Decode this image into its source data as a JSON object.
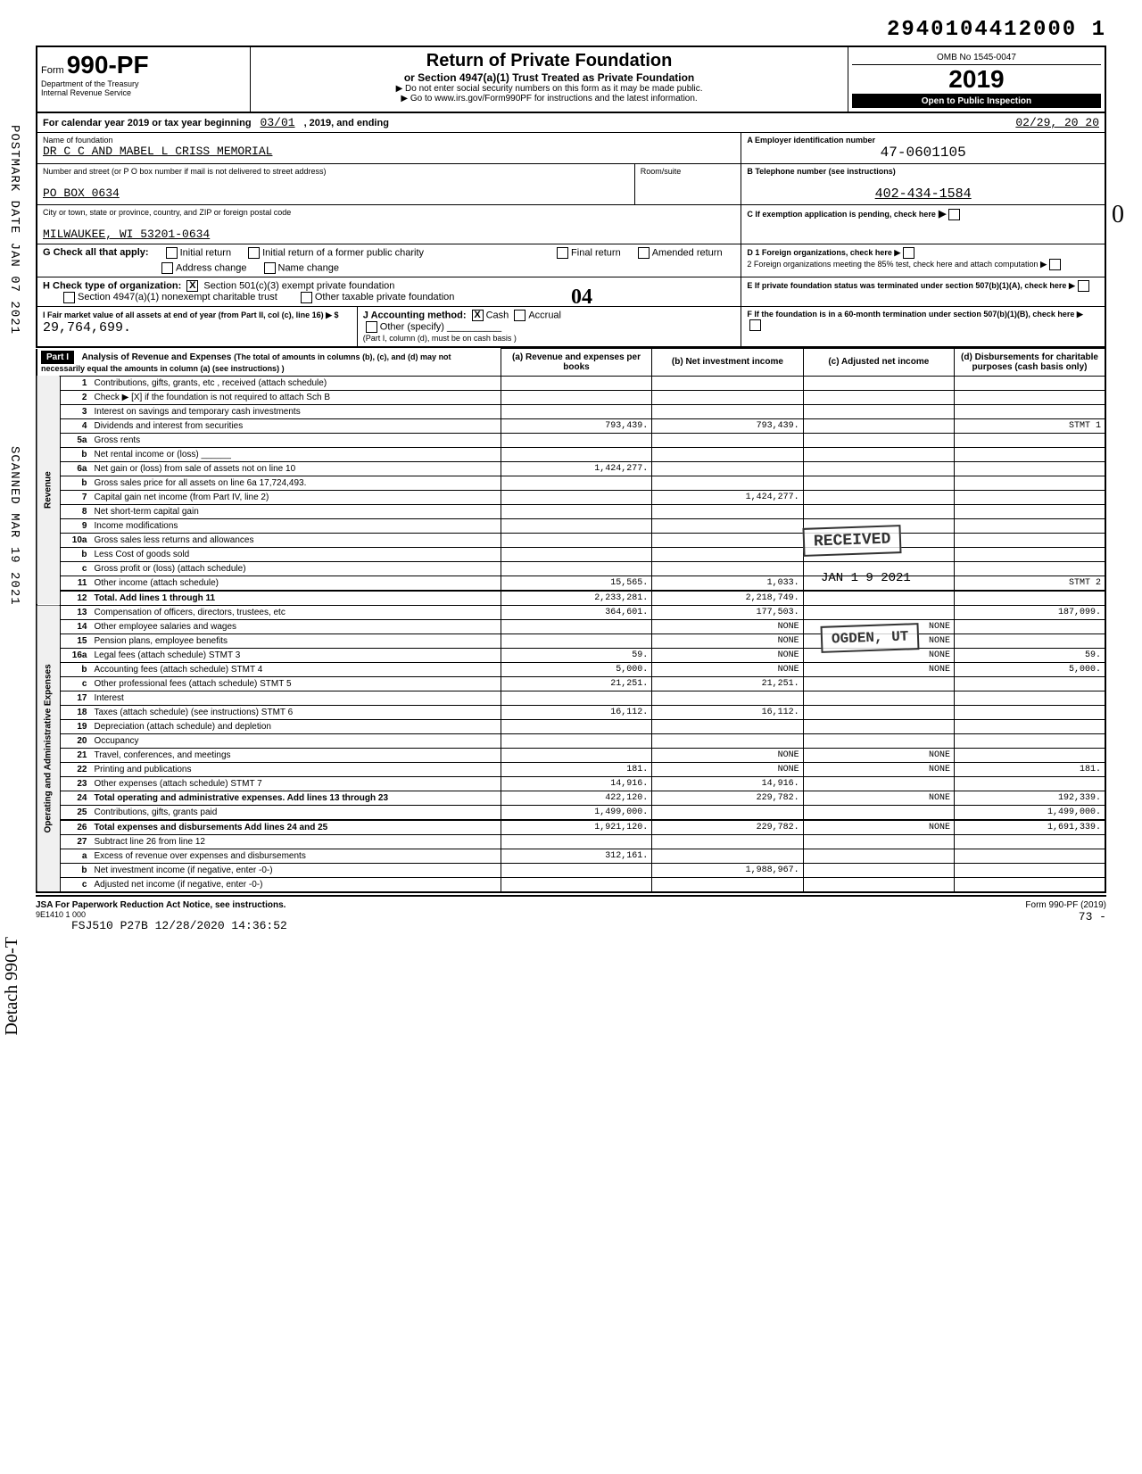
{
  "barcode_number": "2940104412000 1",
  "omb": "OMB No 1545-0047",
  "form_number": "990-PF",
  "form_prefix": "Form",
  "tax_year": "2019",
  "title_main": "Return of Private Foundation",
  "title_sub": "or Section 4947(a)(1) Trust Treated as Private Foundation",
  "title_note1": "▶ Do not enter social security numbers on this form as it may be made public.",
  "title_note2": "▶ Go to www.irs.gov/Form990PF for instructions and the latest information.",
  "dept": "Department of the Treasury",
  "irs": "Internal Revenue Service",
  "inspection": "Open to Public Inspection",
  "calendar_line": "For calendar year 2019 or tax year beginning",
  "period_start": "03/01",
  "period_mid": ", 2019, and ending",
  "period_end": "02/29, 20 20",
  "foundation_label": "Name of foundation",
  "foundation_name": "DR C C AND MABEL L CRISS MEMORIAL",
  "ein_label": "A  Employer identification number",
  "ein": "47-0601105",
  "address_label": "Number and street (or P O  box number if mail is not delivered to street address)",
  "room_label": "Room/suite",
  "phone_label": "B  Telephone number (see instructions)",
  "po_box": "PO BOX 0634",
  "phone": "402-434-1584",
  "city_label": "City or town, state or province, country, and ZIP or foreign postal code",
  "city": "MILWAUKEE, WI 53201-0634",
  "c_label": "C  If exemption application is pending, check here",
  "g_label": "G Check all that apply:",
  "g_opts": {
    "initial": "Initial return",
    "initial_former": "Initial return of a former public charity",
    "final": "Final return",
    "amended": "Amended return",
    "address": "Address change",
    "name": "Name change"
  },
  "d_label": "D 1 Foreign organizations, check here",
  "d2_label": "2 Foreign organizations meeting the 85% test, check here and attach computation",
  "h_label": "H Check type of organization:",
  "h_501": "Section 501(c)(3) exempt private foundation",
  "h_4947": "Section 4947(a)(1) nonexempt charitable trust",
  "h_other": "Other taxable private foundation",
  "e_label": "E  If private foundation status was terminated under section 507(b)(1)(A), check here",
  "i_label": "I  Fair market value of all assets at end of year (from Part II, col (c), line 16) ▶ $",
  "i_value": "29,764,699.",
  "j_label": "J Accounting method:",
  "j_cash": "Cash",
  "j_accrual": "Accrual",
  "j_other": "Other (specify)",
  "j_note": "(Part I, column (d), must be on cash basis )",
  "f_label": "F  If the foundation is in a 60-month termination under section 507(b)(1)(B), check here",
  "part1_title": "Analysis of Revenue and Expenses",
  "part1_note": "(The total of amounts in columns (b), (c), and (d) may not necessarily equal the amounts in column (a) (see instructions) )",
  "col_a": "(a) Revenue and expenses per books",
  "col_b": "(b) Net investment income",
  "col_c": "(c) Adjusted net income",
  "col_d": "(d) Disbursements for charitable purposes (cash basis only)",
  "side_revenue": "Revenue",
  "side_expenses": "Operating and Administrative Expenses",
  "stamps": {
    "received": "RECEIVED",
    "date": "JAN 1 9 2021",
    "ogden": "OGDEN, UT",
    "postmark": "POSTMARK DATE JAN 07 2021",
    "scanned": "SCANNED MAR 19 2021",
    "detach": "Detach 990-T",
    "hand04": "04",
    "handmark": "0"
  },
  "lines": [
    {
      "n": "1",
      "desc": "Contributions, gifts, grants, etc , received (attach schedule)",
      "a": "",
      "b": "",
      "c": "",
      "d": ""
    },
    {
      "n": "2",
      "desc": "Check ▶ [X] if the foundation is not required to attach Sch B",
      "a": "",
      "b": "",
      "c": "",
      "d": ""
    },
    {
      "n": "3",
      "desc": "Interest on savings and temporary cash investments",
      "a": "",
      "b": "",
      "c": "",
      "d": ""
    },
    {
      "n": "4",
      "desc": "Dividends and interest from securities",
      "a": "793,439.",
      "b": "793,439.",
      "c": "",
      "d": "STMT 1"
    },
    {
      "n": "5a",
      "desc": "Gross rents",
      "a": "",
      "b": "",
      "c": "",
      "d": ""
    },
    {
      "n": "b",
      "desc": "Net rental income or (loss) ______",
      "a": "",
      "b": "",
      "c": "",
      "d": ""
    },
    {
      "n": "6a",
      "desc": "Net gain or (loss) from sale of assets not on line 10",
      "a": "1,424,277.",
      "b": "",
      "c": "",
      "d": ""
    },
    {
      "n": "b",
      "desc": "Gross sales price for all assets on line 6a  17,724,493.",
      "a": "",
      "b": "",
      "c": "",
      "d": ""
    },
    {
      "n": "7",
      "desc": "Capital gain net income (from Part IV, line 2)",
      "a": "",
      "b": "1,424,277.",
      "c": "",
      "d": ""
    },
    {
      "n": "8",
      "desc": "Net short-term capital gain",
      "a": "",
      "b": "",
      "c": "",
      "d": ""
    },
    {
      "n": "9",
      "desc": "Income modifications",
      "a": "",
      "b": "",
      "c": "",
      "d": ""
    },
    {
      "n": "10a",
      "desc": "Gross sales less returns and allowances",
      "a": "",
      "b": "",
      "c": "",
      "d": ""
    },
    {
      "n": "b",
      "desc": "Less Cost of goods sold",
      "a": "",
      "b": "",
      "c": "",
      "d": ""
    },
    {
      "n": "c",
      "desc": "Gross profit or (loss) (attach schedule)",
      "a": "",
      "b": "",
      "c": "",
      "d": ""
    },
    {
      "n": "11",
      "desc": "Other income (attach schedule)",
      "a": "15,565.",
      "b": "1,033.",
      "c": "",
      "d": "STMT 2"
    },
    {
      "n": "12",
      "desc": "Total. Add lines 1 through 11",
      "a": "2,233,281.",
      "b": "2,218,749.",
      "c": "",
      "d": ""
    },
    {
      "n": "13",
      "desc": "Compensation of officers, directors, trustees, etc",
      "a": "364,601.",
      "b": "177,503.",
      "c": "",
      "d": "187,099."
    },
    {
      "n": "14",
      "desc": "Other employee salaries and wages",
      "a": "",
      "b": "NONE",
      "c": "NONE",
      "d": ""
    },
    {
      "n": "15",
      "desc": "Pension plans, employee benefits",
      "a": "",
      "b": "NONE",
      "c": "NONE",
      "d": ""
    },
    {
      "n": "16a",
      "desc": "Legal fees (attach schedule)  STMT 3",
      "a": "59.",
      "b": "NONE",
      "c": "NONE",
      "d": "59."
    },
    {
      "n": "b",
      "desc": "Accounting fees (attach schedule) STMT 4",
      "a": "5,000.",
      "b": "NONE",
      "c": "NONE",
      "d": "5,000."
    },
    {
      "n": "c",
      "desc": "Other professional fees (attach schedule) STMT 5",
      "a": "21,251.",
      "b": "21,251.",
      "c": "",
      "d": ""
    },
    {
      "n": "17",
      "desc": "Interest",
      "a": "",
      "b": "",
      "c": "",
      "d": ""
    },
    {
      "n": "18",
      "desc": "Taxes (attach schedule) (see instructions) STMT 6",
      "a": "16,112.",
      "b": "16,112.",
      "c": "",
      "d": ""
    },
    {
      "n": "19",
      "desc": "Depreciation (attach schedule) and depletion",
      "a": "",
      "b": "",
      "c": "",
      "d": ""
    },
    {
      "n": "20",
      "desc": "Occupancy",
      "a": "",
      "b": "",
      "c": "",
      "d": ""
    },
    {
      "n": "21",
      "desc": "Travel, conferences, and meetings",
      "a": "",
      "b": "NONE",
      "c": "NONE",
      "d": ""
    },
    {
      "n": "22",
      "desc": "Printing and publications",
      "a": "181.",
      "b": "NONE",
      "c": "NONE",
      "d": "181."
    },
    {
      "n": "23",
      "desc": "Other expenses (attach schedule) STMT 7",
      "a": "14,916.",
      "b": "14,916.",
      "c": "",
      "d": ""
    },
    {
      "n": "24",
      "desc": "Total operating and administrative expenses. Add lines 13 through 23",
      "a": "422,120.",
      "b": "229,782.",
      "c": "NONE",
      "d": "192,339."
    },
    {
      "n": "25",
      "desc": "Contributions, gifts, grants paid",
      "a": "1,499,000.",
      "b": "",
      "c": "",
      "d": "1,499,000."
    },
    {
      "n": "26",
      "desc": "Total expenses and disbursements  Add lines 24 and 25",
      "a": "1,921,120.",
      "b": "229,782.",
      "c": "NONE",
      "d": "1,691,339."
    },
    {
      "n": "27",
      "desc": "Subtract line 26 from line 12",
      "a": "",
      "b": "",
      "c": "",
      "d": ""
    },
    {
      "n": "a",
      "desc": "Excess of revenue over expenses and disbursements",
      "a": "312,161.",
      "b": "",
      "c": "",
      "d": ""
    },
    {
      "n": "b",
      "desc": "Net investment income (if negative, enter -0-)",
      "a": "",
      "b": "1,988,967.",
      "c": "",
      "d": ""
    },
    {
      "n": "c",
      "desc": "Adjusted net income (if negative, enter -0-)",
      "a": "",
      "b": "",
      "c": "",
      "d": ""
    }
  ],
  "footer": {
    "paperwork": "JSA For Paperwork Reduction Act Notice, see instructions.",
    "code": "9E1410 1 000",
    "stamp_line": "FSJ510 P27B 12/28/2020 14:36:52",
    "form_ref": "Form 990-PF (2019)",
    "page": "73  -"
  }
}
